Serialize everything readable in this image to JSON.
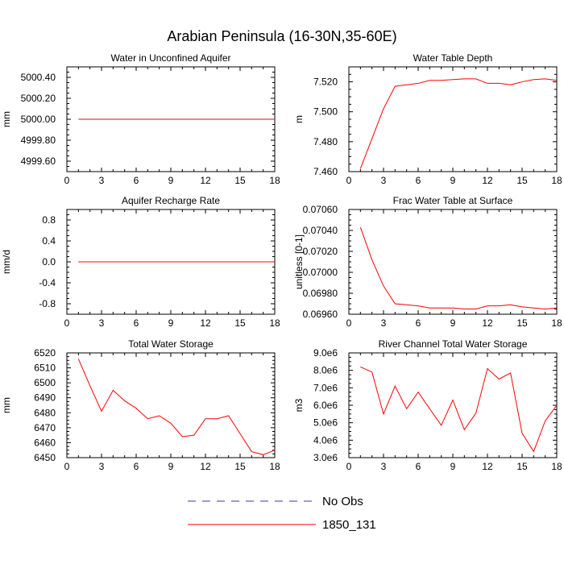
{
  "title": "Arabian Peninsula (16-30N,35-60E)",
  "legend": {
    "placement": "bottom-center",
    "entries": [
      {
        "label": "No Obs",
        "color": "#3a3aa0",
        "dash": true
      },
      {
        "label": "1850_131",
        "color": "#ff0000",
        "dash": false
      }
    ]
  },
  "chart_data": [
    {
      "type": "line",
      "title": "Water in Unconfined Aquifer",
      "ylabel": "mm",
      "xlabel": "",
      "xlim": [
        0,
        18
      ],
      "ylim": [
        4999.5,
        5000.5
      ],
      "xticks": [
        0,
        3,
        6,
        9,
        12,
        15,
        18
      ],
      "yticks": [
        4999.6,
        4999.8,
        5000.0,
        5000.2,
        5000.4
      ],
      "ytick_labels": [
        "4999.60",
        "4999.80",
        "5000.00",
        "5000.20",
        "5000.40"
      ],
      "series": [
        {
          "name": "1850_131",
          "color": "#ff0000",
          "x": [
            1,
            2,
            3,
            4,
            5,
            6,
            7,
            8,
            9,
            10,
            11,
            12,
            13,
            14,
            15,
            16,
            17,
            18
          ],
          "values": [
            5000,
            5000,
            5000,
            5000,
            5000,
            5000,
            5000,
            5000,
            5000,
            5000,
            5000,
            5000,
            5000,
            5000,
            5000,
            5000,
            5000,
            5000
          ]
        }
      ]
    },
    {
      "type": "line",
      "title": "Water Table Depth",
      "ylabel": "m",
      "xlabel": "",
      "xlim": [
        0,
        18
      ],
      "ylim": [
        7.46,
        7.53
      ],
      "xticks": [
        0,
        3,
        6,
        9,
        12,
        15,
        18
      ],
      "yticks": [
        7.46,
        7.48,
        7.5,
        7.52
      ],
      "ytick_labels": [
        "7.460",
        "7.480",
        "7.500",
        "7.520"
      ],
      "series": [
        {
          "name": "1850_131",
          "color": "#ff0000",
          "x": [
            1,
            2,
            3,
            4,
            5,
            6,
            7,
            8,
            9,
            10,
            11,
            12,
            13,
            14,
            15,
            16,
            17,
            18
          ],
          "values": [
            7.462,
            7.482,
            7.502,
            7.517,
            7.518,
            7.519,
            7.521,
            7.521,
            7.5215,
            7.522,
            7.522,
            7.519,
            7.519,
            7.518,
            7.52,
            7.5215,
            7.522,
            7.521
          ]
        }
      ]
    },
    {
      "type": "line",
      "title": "Aquifer Recharge Rate",
      "ylabel": "mm/d",
      "xlabel": "",
      "xlim": [
        0,
        18
      ],
      "ylim": [
        -1.0,
        1.0
      ],
      "xticks": [
        0,
        3,
        6,
        9,
        12,
        15,
        18
      ],
      "yticks": [
        -0.8,
        -0.4,
        0.0,
        0.4,
        0.8
      ],
      "ytick_labels": [
        "-0.8",
        "-0.4",
        "0.0",
        "0.4",
        "0.8"
      ],
      "series": [
        {
          "name": "1850_131",
          "color": "#ff0000",
          "x": [
            1,
            2,
            3,
            4,
            5,
            6,
            7,
            8,
            9,
            10,
            11,
            12,
            13,
            14,
            15,
            16,
            17,
            18
          ],
          "values": [
            0,
            0,
            0,
            0,
            0,
            0,
            0,
            0,
            0,
            0,
            0,
            0,
            0,
            0,
            0,
            0,
            0,
            0
          ]
        }
      ]
    },
    {
      "type": "line",
      "title": "Frac Water Table at Surface",
      "ylabel": "unitless [0-1]",
      "xlabel": "",
      "xlim": [
        0,
        18
      ],
      "ylim": [
        0.0696,
        0.0706
      ],
      "xticks": [
        0,
        3,
        6,
        9,
        12,
        15,
        18
      ],
      "yticks": [
        0.0696,
        0.0698,
        0.07,
        0.0702,
        0.0704,
        0.0706
      ],
      "ytick_labels": [
        "0.06960",
        "0.06980",
        "0.07000",
        "0.07020",
        "0.07040",
        "0.07060"
      ],
      "series": [
        {
          "name": "1850_131",
          "color": "#ff0000",
          "x": [
            1,
            2,
            3,
            4,
            5,
            6,
            7,
            8,
            9,
            10,
            11,
            12,
            13,
            14,
            15,
            16,
            17,
            18
          ],
          "values": [
            0.07043,
            0.07012,
            0.06987,
            0.0697,
            0.06969,
            0.06968,
            0.06966,
            0.06966,
            0.06966,
            0.06965,
            0.06965,
            0.06968,
            0.06968,
            0.06969,
            0.06967,
            0.06966,
            0.06965,
            0.06966
          ]
        }
      ]
    },
    {
      "type": "line",
      "title": "Total Water Storage",
      "ylabel": "mm",
      "xlabel": "",
      "xlim": [
        0,
        18
      ],
      "ylim": [
        6450,
        6520
      ],
      "xticks": [
        0,
        3,
        6,
        9,
        12,
        15,
        18
      ],
      "yticks": [
        6450,
        6460,
        6470,
        6480,
        6490,
        6500,
        6510,
        6520
      ],
      "ytick_labels": [
        "6450",
        "6460",
        "6470",
        "6480",
        "6490",
        "6500",
        "6510",
        "6520"
      ],
      "series": [
        {
          "name": "1850_131",
          "color": "#ff0000",
          "x": [
            1,
            2,
            3,
            4,
            5,
            6,
            7,
            8,
            9,
            10,
            11,
            12,
            13,
            14,
            15,
            16,
            17,
            18
          ],
          "values": [
            6516,
            6498,
            6481,
            6495,
            6488,
            6483,
            6476,
            6478,
            6473,
            6464,
            6465,
            6476,
            6476,
            6478,
            6466,
            6454,
            6452,
            6455
          ]
        }
      ]
    },
    {
      "type": "line",
      "title": "River Channel Total Water Storage",
      "ylabel": "m3",
      "xlabel": "",
      "xlim": [
        0,
        18
      ],
      "ylim": [
        3000000.0,
        9000000.0
      ],
      "xticks": [
        0,
        3,
        6,
        9,
        12,
        15,
        18
      ],
      "yticks": [
        3000000.0,
        4000000.0,
        5000000.0,
        6000000.0,
        7000000.0,
        8000000.0,
        9000000.0
      ],
      "ytick_labels": [
        "3.0e6",
        "4.0e6",
        "5.0e6",
        "6.0e6",
        "7.0e6",
        "8.0e6",
        "9.0e6"
      ],
      "series": [
        {
          "name": "1850_131",
          "color": "#ff0000",
          "x": [
            1,
            2,
            3,
            4,
            5,
            6,
            7,
            8,
            9,
            10,
            11,
            12,
            13,
            14,
            15,
            16,
            17,
            18
          ],
          "values": [
            8200000.0,
            7900000.0,
            5500000.0,
            7100000.0,
            5800000.0,
            6750000.0,
            5800000.0,
            4850000.0,
            6300000.0,
            4600000.0,
            5550000.0,
            8100000.0,
            7500000.0,
            7850000.0,
            4400000.0,
            3350000.0,
            5100000.0,
            6000000.0
          ]
        }
      ]
    }
  ]
}
